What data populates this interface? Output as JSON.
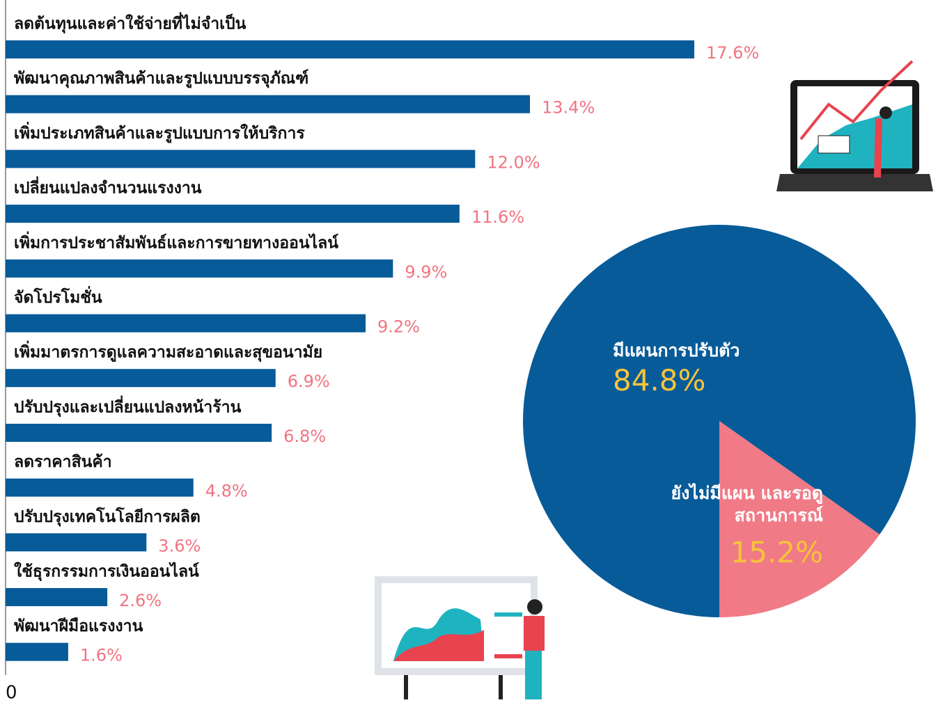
{
  "chart_data": [
    {
      "type": "hbar",
      "categories": [
        "ลดต้นทุนและค่าใช้จ่ายที่ไม่จำเป็น",
        "พัฒนาคุณภาพสินค้าและรูปแบบบรรจุภัณฑ์",
        "เพิ่มประเภทสินค้าและรูปแบบการให้บริการ",
        "เปลี่ยนแปลงจำนวนแรงงาน",
        "เพิ่มการประชาสัมพันธ์และการขายทางออนไลน์",
        "จัดโปรโมชั่น",
        "เพิ่มมาตรการดูแลความสะอาดและสุขอนามัย",
        "ปรับปรุงและเปลี่ยนแปลงหน้าร้าน",
        "ลดราคาสินค้า",
        "ปรับปรุงเทคโนโลยีการผลิต",
        "ใช้ธุรกรรมการเงินออนไลน์",
        "พัฒนาฝีมือแรงงาน"
      ],
      "values": [
        17.6,
        13.4,
        12.0,
        11.6,
        9.9,
        9.2,
        6.9,
        6.8,
        4.8,
        3.6,
        2.6,
        1.6
      ],
      "value_labels": [
        "17.6%",
        "13.4%",
        "12.0%",
        "11.6%",
        "9.9%",
        "9.2%",
        "6.9%",
        "6.8%",
        "4.8%",
        "3.6%",
        "2.6%",
        "1.6%"
      ],
      "color": "#075b98",
      "label_color": "#f07480",
      "xlim": [
        0,
        18
      ],
      "xticks": [
        0
      ]
    },
    {
      "type": "pie",
      "categories": [
        "มีแผนการปรับตัว",
        "ยังไม่มีแผน และรอดูสถานการณ์"
      ],
      "values": [
        84.8,
        15.2
      ],
      "value_labels": [
        "84.8%",
        "15.2%"
      ],
      "colors": [
        "#075b98",
        "#f07a86"
      ]
    }
  ]
}
